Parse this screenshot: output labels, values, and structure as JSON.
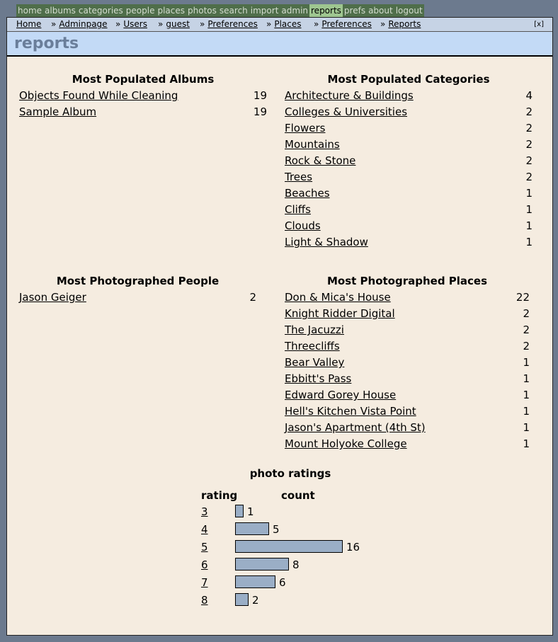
{
  "topmenu": [
    "home",
    "albums",
    "categories",
    "people",
    "places",
    "photos",
    "search",
    "import",
    "admin",
    "reports",
    "prefs",
    "about",
    "logout"
  ],
  "topmenu_active": "reports",
  "breadcrumbs": [
    "Home",
    "Adminpage",
    "Users",
    "guest",
    "Preferences",
    "Places",
    "Preferences",
    "Reports"
  ],
  "breadcrumb_separator": "»",
  "close_label": "[x]",
  "page_title": "reports",
  "albums": {
    "title": "Most Populated Albums",
    "items": [
      {
        "name": "Objects Found While Cleaning",
        "count": "19"
      },
      {
        "name": "Sample Album",
        "count": "19"
      }
    ]
  },
  "categories": {
    "title": "Most Populated Categories",
    "items": [
      {
        "name": "Architecture & Buildings",
        "count": "4"
      },
      {
        "name": "Colleges & Universities",
        "count": "2"
      },
      {
        "name": "Flowers",
        "count": "2"
      },
      {
        "name": "Mountains",
        "count": "2"
      },
      {
        "name": "Rock & Stone",
        "count": "2"
      },
      {
        "name": "Trees",
        "count": "2"
      },
      {
        "name": "Beaches",
        "count": "1"
      },
      {
        "name": "Cliffs",
        "count": "1"
      },
      {
        "name": "Clouds",
        "count": "1"
      },
      {
        "name": "Light & Shadow",
        "count": "1"
      }
    ]
  },
  "people": {
    "title": "Most Photographed People",
    "items": [
      {
        "name": "Jason Geiger",
        "count": "2"
      }
    ]
  },
  "places": {
    "title": "Most Photographed Places",
    "items": [
      {
        "name": "Don & Mica's House",
        "count": "22"
      },
      {
        "name": "Knight Ridder Digital",
        "count": "2"
      },
      {
        "name": "The Jacuzzi",
        "count": "2"
      },
      {
        "name": "Threecliffs",
        "count": "2"
      },
      {
        "name": "Bear Valley",
        "count": "1"
      },
      {
        "name": "Ebbitt's Pass",
        "count": "1"
      },
      {
        "name": "Edward Gorey House",
        "count": "1"
      },
      {
        "name": "Hell's Kitchen Vista Point",
        "count": "1"
      },
      {
        "name": "Jason's Apartment (4th St)",
        "count": "1"
      },
      {
        "name": "Mount Holyoke College",
        "count": "1"
      }
    ]
  },
  "ratings": {
    "title": "photo ratings",
    "col_rating": "rating",
    "col_count": "count",
    "bar_color": "#9aaec6",
    "rows": [
      {
        "rating": "3",
        "count": 1
      },
      {
        "rating": "4",
        "count": 5
      },
      {
        "rating": "5",
        "count": 16
      },
      {
        "rating": "6",
        "count": 8
      },
      {
        "rating": "7",
        "count": 6
      },
      {
        "rating": "8",
        "count": 2
      }
    ]
  }
}
